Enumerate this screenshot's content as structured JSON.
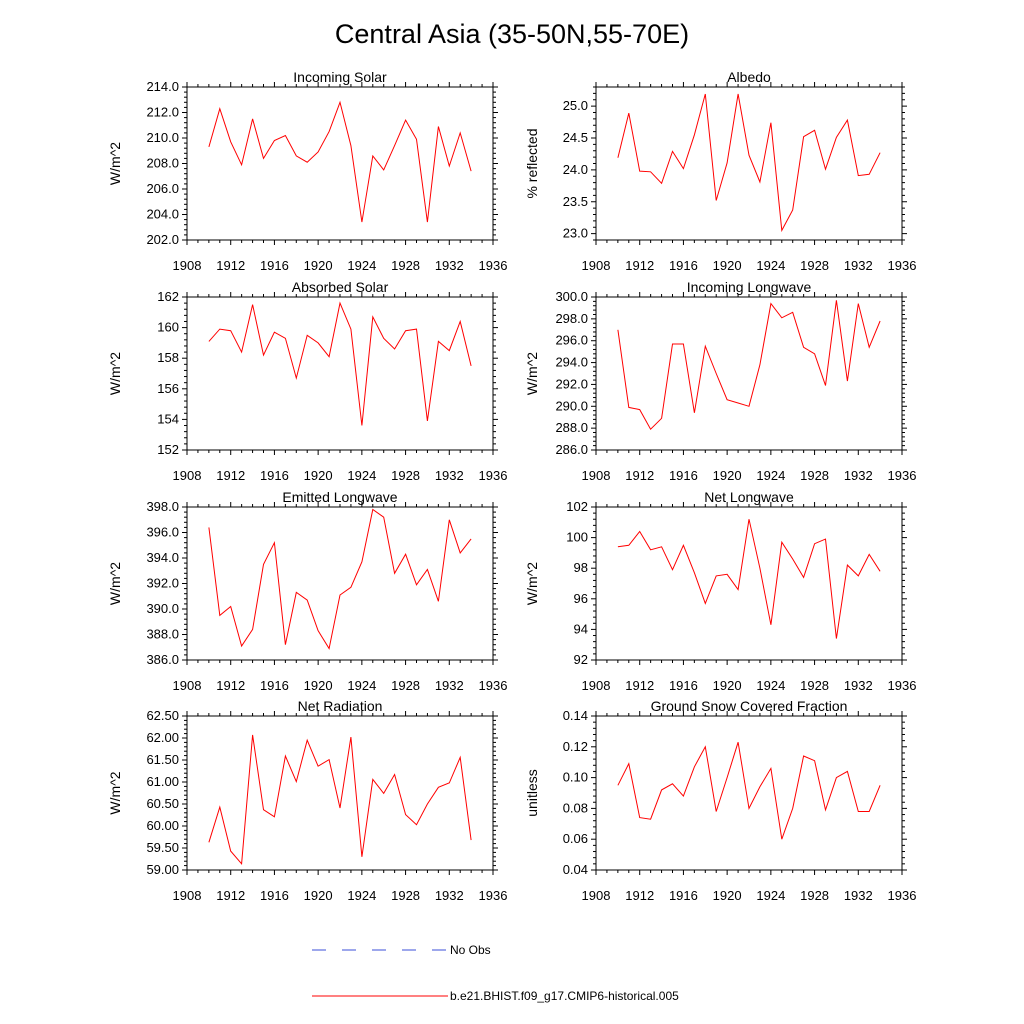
{
  "title": "Central Asia (35-50N,55-70E)",
  "colors": {
    "model": "#ff0000",
    "obs": "#3b4fd8",
    "axis": "#000000"
  },
  "legend": {
    "obs_label": "No Obs",
    "model_label": "b.e21.BHIST.f09_g17.CMIP6-historical.005"
  },
  "chart_data": [
    {
      "type": "line",
      "title": "Incoming Solar",
      "ylabel": "W/m^2",
      "xlim": [
        1908,
        1936
      ],
      "ylim": [
        202,
        214
      ],
      "xticks": [
        1908,
        1912,
        1916,
        1920,
        1924,
        1928,
        1932,
        1936
      ],
      "yticks": [
        202,
        204,
        206,
        208,
        210,
        212,
        214
      ],
      "ydecimals": 1,
      "x": [
        1910,
        1911,
        1912,
        1913,
        1914,
        1915,
        1916,
        1917,
        1918,
        1919,
        1920,
        1921,
        1922,
        1923,
        1924,
        1925,
        1926,
        1927,
        1928,
        1929,
        1930,
        1931,
        1932,
        1933,
        1934
      ],
      "series": [
        {
          "name": "b.e21.BHIST.f09_g17.CMIP6-historical.005",
          "values": [
            209.3,
            212.3,
            209.7,
            207.9,
            211.5,
            208.4,
            209.8,
            210.2,
            208.6,
            208.1,
            208.9,
            210.5,
            212.8,
            209.4,
            203.4,
            208.6,
            207.5,
            209.4,
            211.4,
            209.9,
            203.4,
            210.9,
            207.8,
            210.4,
            207.4
          ]
        }
      ]
    },
    {
      "type": "line",
      "title": "Albedo",
      "ylabel": "% reflected",
      "xlim": [
        1908,
        1936
      ],
      "ylim": [
        22.9,
        25.3
      ],
      "xticks": [
        1908,
        1912,
        1916,
        1920,
        1924,
        1928,
        1932,
        1936
      ],
      "yticks": [
        23.0,
        23.5,
        24.0,
        24.5,
        25.0
      ],
      "ydecimals": 1,
      "x": [
        1910,
        1911,
        1912,
        1913,
        1914,
        1915,
        1916,
        1917,
        1918,
        1919,
        1920,
        1921,
        1922,
        1923,
        1924,
        1925,
        1926,
        1927,
        1928,
        1929,
        1930,
        1931,
        1932,
        1933,
        1934
      ],
      "series": [
        {
          "name": "b.e21.BHIST.f09_g17.CMIP6-historical.005",
          "values": [
            24.19,
            24.89,
            23.98,
            23.97,
            23.79,
            24.29,
            24.02,
            24.55,
            25.19,
            23.52,
            24.11,
            25.19,
            24.23,
            23.81,
            24.74,
            23.05,
            23.37,
            24.52,
            24.62,
            24.01,
            24.51,
            24.78,
            23.91,
            23.93,
            24.27
          ]
        }
      ]
    },
    {
      "type": "line",
      "title": "Absorbed Solar",
      "ylabel": "W/m^2",
      "xlim": [
        1908,
        1936
      ],
      "ylim": [
        152,
        162
      ],
      "xticks": [
        1908,
        1912,
        1916,
        1920,
        1924,
        1928,
        1932,
        1936
      ],
      "yticks": [
        152,
        154,
        156,
        158,
        160,
        162
      ],
      "ydecimals": 0,
      "x": [
        1910,
        1911,
        1912,
        1913,
        1914,
        1915,
        1916,
        1917,
        1918,
        1919,
        1920,
        1921,
        1922,
        1923,
        1924,
        1925,
        1926,
        1927,
        1928,
        1929,
        1930,
        1931,
        1932,
        1933,
        1934
      ],
      "series": [
        {
          "name": "b.e21.BHIST.f09_g17.CMIP6-historical.005",
          "values": [
            159.1,
            159.9,
            159.8,
            158.4,
            161.5,
            158.2,
            159.7,
            159.3,
            156.7,
            159.5,
            159.0,
            158.1,
            161.6,
            159.9,
            153.6,
            160.7,
            159.3,
            158.6,
            159.8,
            159.9,
            153.9,
            159.1,
            158.5,
            160.4,
            157.5
          ]
        }
      ]
    },
    {
      "type": "line",
      "title": "Incoming Longwave",
      "ylabel": "W/m^2",
      "xlim": [
        1908,
        1936
      ],
      "ylim": [
        286,
        300
      ],
      "xticks": [
        1908,
        1912,
        1916,
        1920,
        1924,
        1928,
        1932,
        1936
      ],
      "yticks": [
        286,
        288,
        290,
        292,
        294,
        296,
        298,
        300
      ],
      "ydecimals": 1,
      "x": [
        1910,
        1911,
        1912,
        1913,
        1914,
        1915,
        1916,
        1917,
        1918,
        1919,
        1920,
        1921,
        1922,
        1923,
        1924,
        1925,
        1926,
        1927,
        1928,
        1929,
        1930,
        1931,
        1932,
        1933,
        1934
      ],
      "series": [
        {
          "name": "b.e21.BHIST.f09_g17.CMIP6-historical.005",
          "values": [
            297.0,
            289.9,
            289.7,
            287.9,
            288.9,
            295.7,
            295.7,
            289.4,
            295.5,
            293.0,
            290.6,
            290.3,
            290.0,
            293.8,
            299.4,
            298.1,
            298.6,
            295.4,
            294.8,
            291.9,
            299.7,
            292.3,
            299.4,
            295.4,
            297.8
          ]
        }
      ]
    },
    {
      "type": "line",
      "title": "Emitted Longwave",
      "ylabel": "W/m^2",
      "xlim": [
        1908,
        1936
      ],
      "ylim": [
        386,
        398
      ],
      "xticks": [
        1908,
        1912,
        1916,
        1920,
        1924,
        1928,
        1932,
        1936
      ],
      "yticks": [
        386,
        388,
        390,
        392,
        394,
        396,
        398
      ],
      "ydecimals": 1,
      "x": [
        1910,
        1911,
        1912,
        1913,
        1914,
        1915,
        1916,
        1917,
        1918,
        1919,
        1920,
        1921,
        1922,
        1923,
        1924,
        1925,
        1926,
        1927,
        1928,
        1929,
        1930,
        1931,
        1932,
        1933,
        1934
      ],
      "series": [
        {
          "name": "b.e21.BHIST.f09_g17.CMIP6-historical.005",
          "values": [
            396.4,
            389.5,
            390.2,
            387.1,
            388.4,
            393.5,
            395.2,
            387.2,
            391.3,
            390.7,
            388.3,
            386.9,
            391.1,
            391.7,
            393.7,
            397.8,
            397.2,
            392.8,
            394.3,
            391.9,
            393.1,
            390.6,
            397.0,
            394.4,
            395.5
          ]
        }
      ]
    },
    {
      "type": "line",
      "title": "Net Longwave",
      "ylabel": "W/m^2",
      "xlim": [
        1908,
        1936
      ],
      "ylim": [
        92,
        102
      ],
      "xticks": [
        1908,
        1912,
        1916,
        1920,
        1924,
        1928,
        1932,
        1936
      ],
      "yticks": [
        92,
        94,
        96,
        98,
        100,
        102
      ],
      "ydecimals": 0,
      "x": [
        1910,
        1911,
        1912,
        1913,
        1914,
        1915,
        1916,
        1917,
        1918,
        1919,
        1920,
        1921,
        1922,
        1923,
        1924,
        1925,
        1926,
        1927,
        1928,
        1929,
        1930,
        1931,
        1932,
        1933,
        1934
      ],
      "series": [
        {
          "name": "b.e21.BHIST.f09_g17.CMIP6-historical.005",
          "values": [
            99.4,
            99.5,
            100.4,
            99.2,
            99.4,
            97.9,
            99.5,
            97.7,
            95.7,
            97.5,
            97.6,
            96.6,
            101.2,
            98.0,
            94.3,
            99.7,
            98.6,
            97.4,
            99.6,
            99.9,
            93.4,
            98.2,
            97.5,
            98.9,
            97.8
          ]
        }
      ]
    },
    {
      "type": "line",
      "title": "Net Radiation",
      "ylabel": "W/m^2",
      "xlim": [
        1908,
        1936
      ],
      "ylim": [
        59.0,
        62.5
      ],
      "xticks": [
        1908,
        1912,
        1916,
        1920,
        1924,
        1928,
        1932,
        1936
      ],
      "yticks": [
        59.0,
        59.5,
        60.0,
        60.5,
        61.0,
        61.5,
        62.0,
        62.5
      ],
      "ydecimals": 2,
      "x": [
        1910,
        1911,
        1912,
        1913,
        1914,
        1915,
        1916,
        1917,
        1918,
        1919,
        1920,
        1921,
        1922,
        1923,
        1924,
        1925,
        1926,
        1927,
        1928,
        1929,
        1930,
        1931,
        1932,
        1933,
        1934
      ],
      "series": [
        {
          "name": "b.e21.BHIST.f09_g17.CMIP6-historical.005",
          "values": [
            59.63,
            60.43,
            59.43,
            59.14,
            62.07,
            60.37,
            60.21,
            61.59,
            61.01,
            61.95,
            61.36,
            61.51,
            60.41,
            62.02,
            59.3,
            61.06,
            60.74,
            61.17,
            60.26,
            60.03,
            60.5,
            60.88,
            60.98,
            61.56,
            59.68
          ]
        }
      ]
    },
    {
      "type": "line",
      "title": "Ground Snow Covered Fraction",
      "ylabel": "unitless",
      "xlim": [
        1908,
        1936
      ],
      "ylim": [
        0.04,
        0.14
      ],
      "xticks": [
        1908,
        1912,
        1916,
        1920,
        1924,
        1928,
        1932,
        1936
      ],
      "yticks": [
        0.04,
        0.06,
        0.08,
        0.1,
        0.12,
        0.14
      ],
      "ydecimals": 2,
      "x": [
        1910,
        1911,
        1912,
        1913,
        1914,
        1915,
        1916,
        1917,
        1918,
        1919,
        1920,
        1921,
        1922,
        1923,
        1924,
        1925,
        1926,
        1927,
        1928,
        1929,
        1930,
        1931,
        1932,
        1933,
        1934
      ],
      "series": [
        {
          "name": "b.e21.BHIST.f09_g17.CMIP6-historical.005",
          "values": [
            0.095,
            0.109,
            0.074,
            0.073,
            0.092,
            0.096,
            0.088,
            0.107,
            0.12,
            0.078,
            0.1,
            0.123,
            0.08,
            0.094,
            0.106,
            0.06,
            0.08,
            0.114,
            0.111,
            0.079,
            0.1,
            0.104,
            0.078,
            0.078,
            0.095
          ]
        }
      ]
    }
  ]
}
